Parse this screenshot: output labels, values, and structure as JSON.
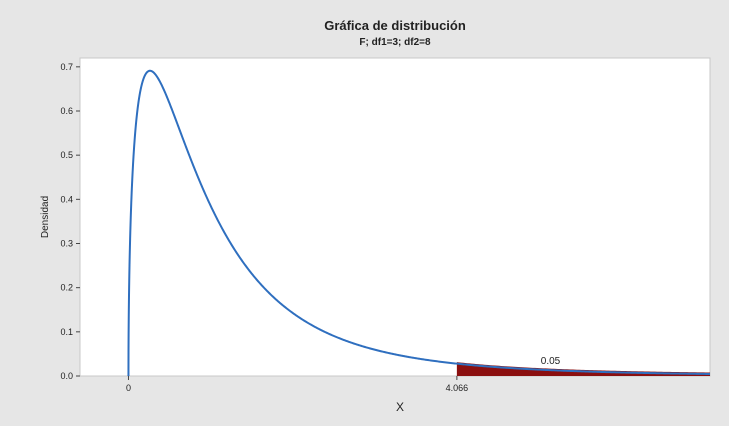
{
  "chart_data": {
    "type": "area",
    "title": "Gráfica de distribución",
    "subtitle": "F; df1=3; df2=8",
    "xlabel": "X",
    "ylabel": "Densidad",
    "distribution": "F",
    "df1": 3,
    "df2": 8,
    "xlim": [
      -0.6,
      7.2
    ],
    "ylim": [
      0,
      0.72
    ],
    "y_ticks": [
      0.0,
      0.1,
      0.2,
      0.3,
      0.4,
      0.5,
      0.6,
      0.7
    ],
    "y_tick_labels": [
      "0.0",
      "0.1",
      "0.2",
      "0.3",
      "0.4",
      "0.5",
      "0.6",
      "0.7"
    ],
    "x_ticks": [
      0,
      4.066
    ],
    "x_tick_labels": [
      "0",
      "4.066"
    ],
    "critical_value": 4.066,
    "shaded_region": {
      "from": 4.066,
      "area_label": "0.05"
    },
    "colors": {
      "curve": "#2f6fbf",
      "fill": "#8b0f0f",
      "plot_bg": "#ffffff",
      "page_bg": "#e6e6e6"
    },
    "grid": false,
    "legend": "none"
  }
}
